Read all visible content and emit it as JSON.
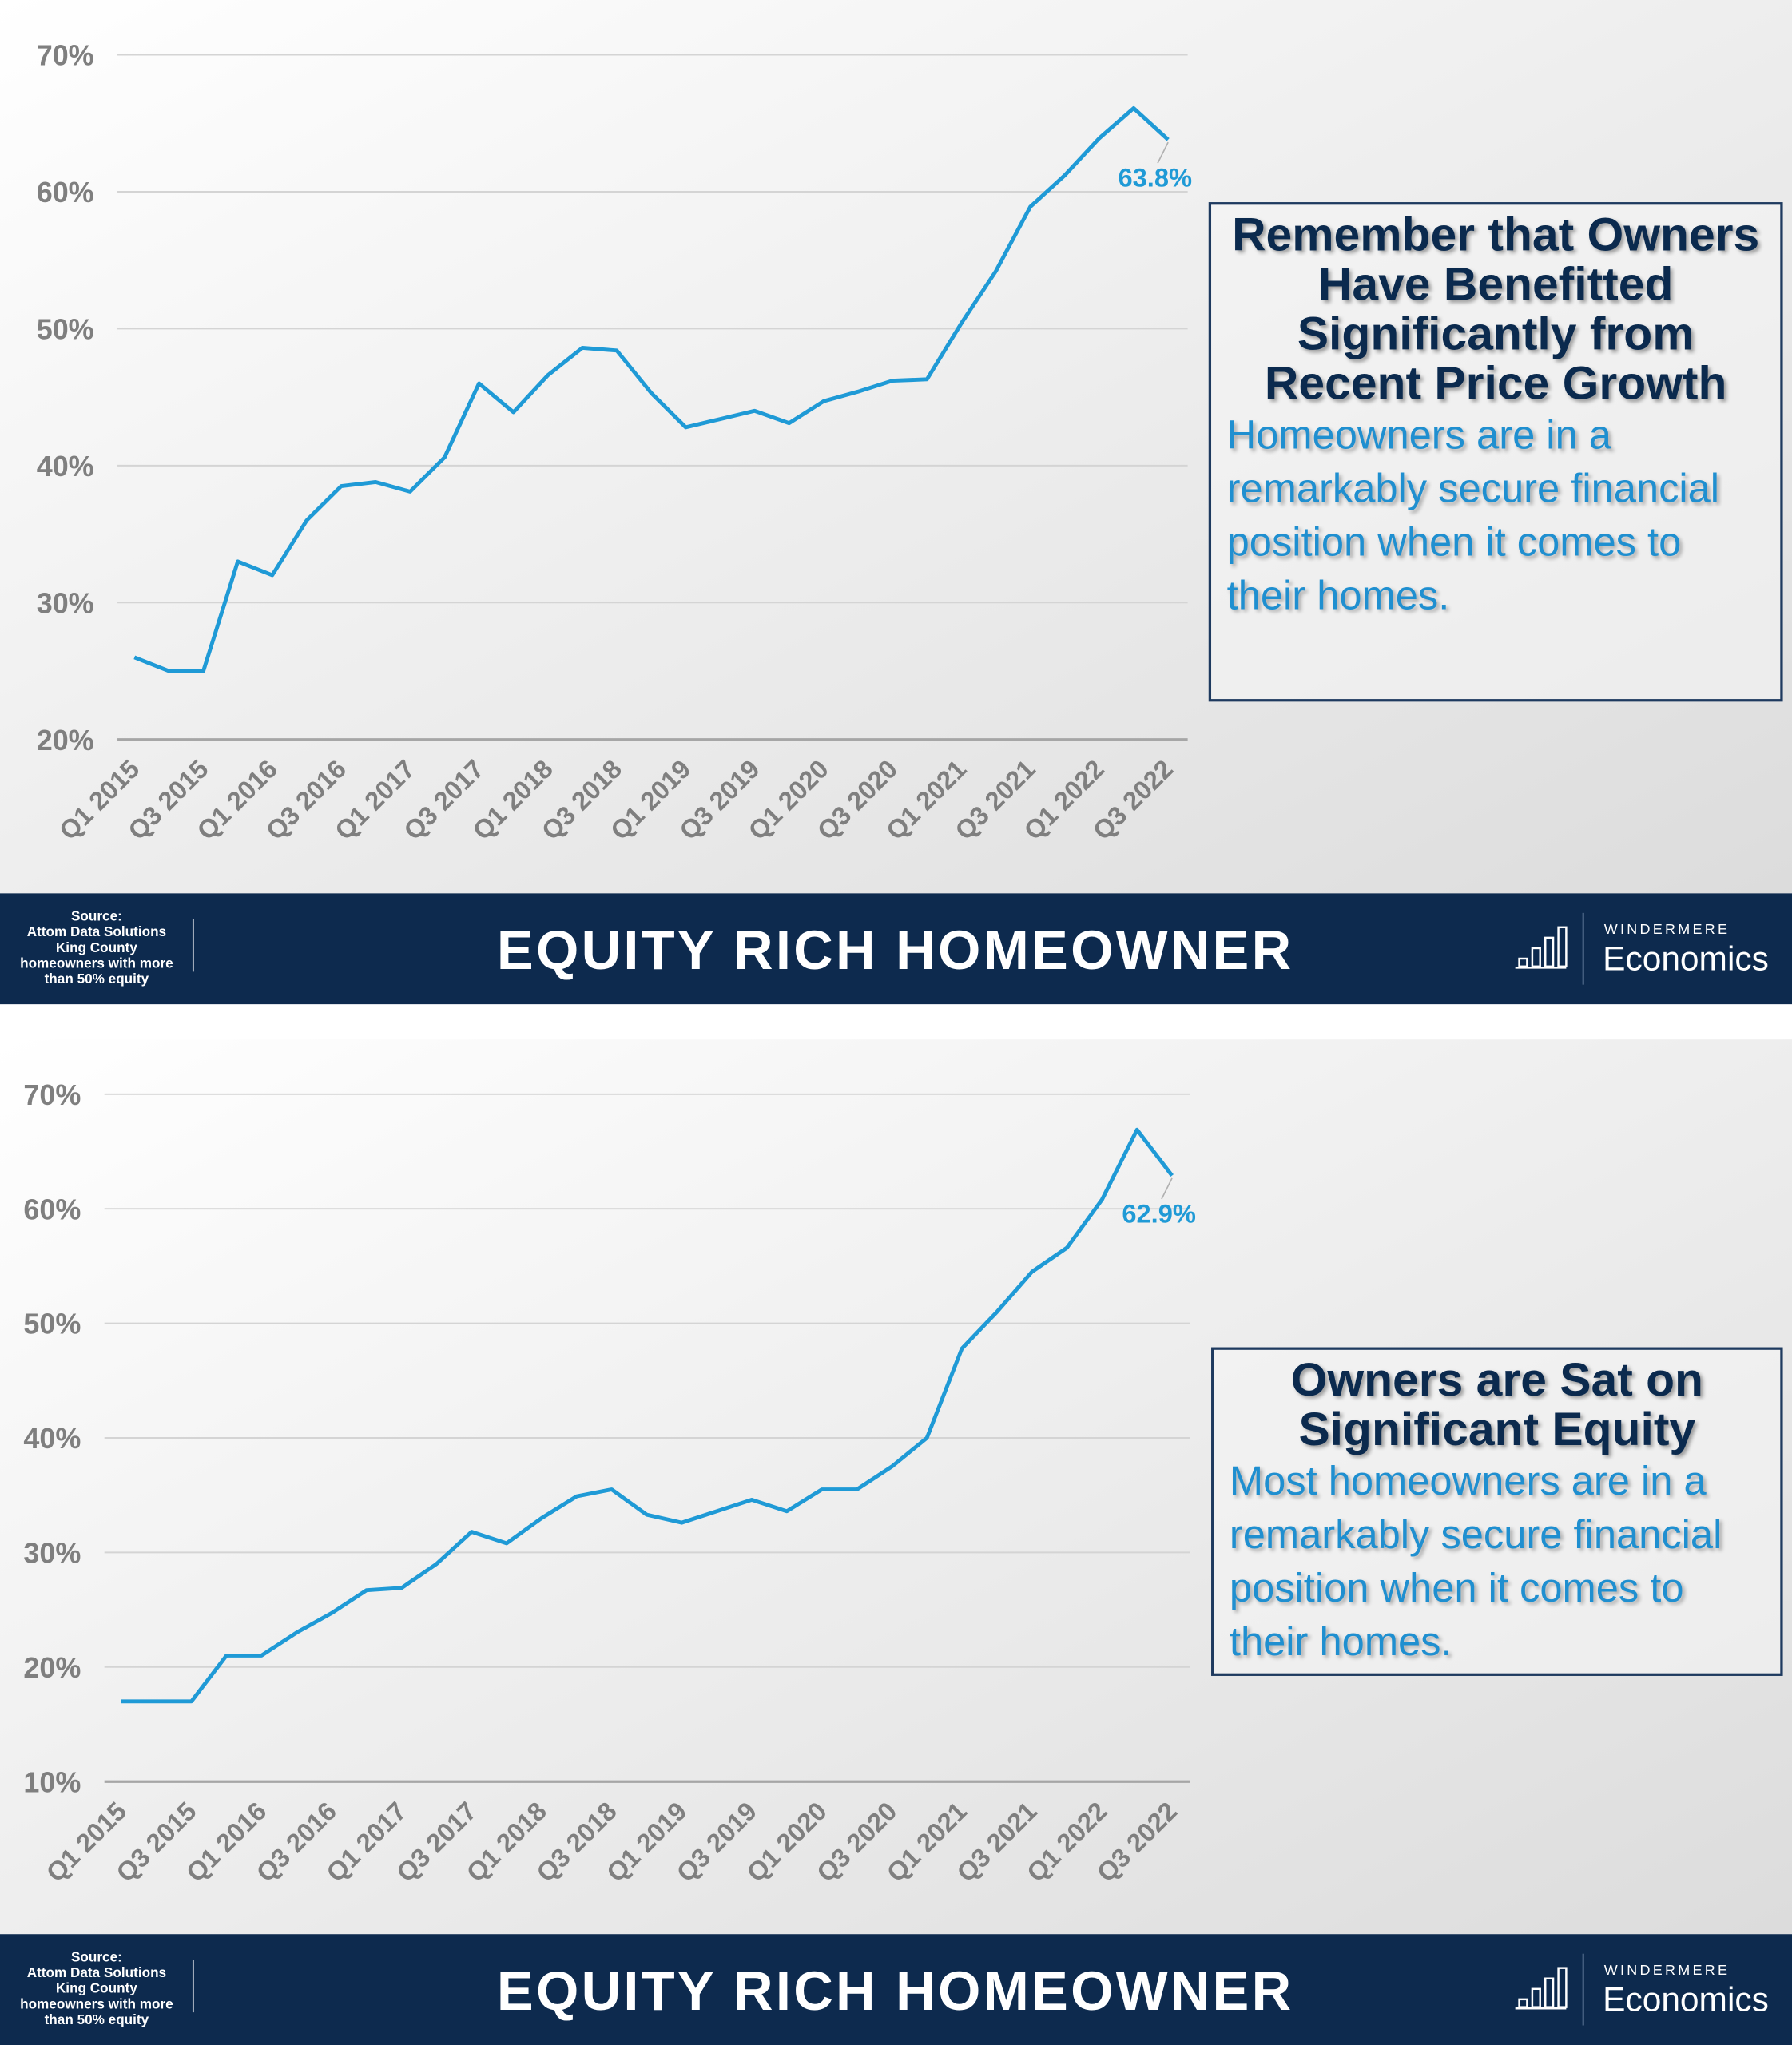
{
  "chart_data": [
    {
      "type": "line",
      "callout_title": "Remember that Owners Have Benefitted Significantly from Recent Price Growth",
      "callout_text": "Homeowners are in a remarkably secure financial position when it comes to their homes.",
      "footer_title": "EQUITY RICH HOMEOWNER",
      "source": [
        "Source:",
        "Attom Data Solutions",
        "King County",
        "homeowners with more",
        "than 50% equity"
      ],
      "brand": "WINDERMERE",
      "brand_sub": "Economics",
      "categories": [
        "Q1 2015",
        null,
        "Q3 2015",
        null,
        "Q1 2016",
        null,
        "Q3 2016",
        null,
        "Q1 2017",
        null,
        "Q3 2017",
        null,
        "Q1 2018",
        null,
        "Q3 2018",
        null,
        "Q1 2019",
        null,
        "Q3 2019",
        null,
        "Q1 2020",
        null,
        "Q3 2020",
        null,
        "Q1 2021",
        null,
        "Q3 2021",
        null,
        "Q1 2022",
        null,
        "Q3 2022"
      ],
      "values": [
        26,
        25,
        25,
        33,
        32,
        36,
        38.5,
        38.8,
        38.1,
        40.6,
        46,
        43.9,
        46.6,
        48.6,
        48.4,
        45.3,
        42.8,
        43.4,
        44,
        43.1,
        44.7,
        45.4,
        46.2,
        46.3,
        50.4,
        54.2,
        58.9,
        61.2,
        63.9,
        66.1,
        63.8
      ],
      "value_labels": [
        null,
        null,
        null,
        null,
        null,
        null,
        null,
        null,
        null,
        null,
        null,
        null,
        null,
        null,
        null,
        null,
        null,
        null,
        null,
        null,
        null,
        null,
        null,
        null,
        null,
        null,
        null,
        null,
        null,
        null,
        "63.8%"
      ],
      "color": "#1f9ad6",
      "ylim": [
        20,
        70
      ],
      "yticks": [
        {
          "value": 20,
          "label": "20%"
        },
        {
          "value": 30,
          "label": "30%"
        },
        {
          "value": 40,
          "label": "40%"
        },
        {
          "value": 50,
          "label": "50%"
        },
        {
          "value": 60,
          "label": "60%"
        },
        {
          "value": 70,
          "label": "70%"
        }
      ],
      "grid": true
    },
    {
      "type": "line",
      "callout_title": "Owners are Sat on Significant Equity",
      "callout_text": "Most homeowners are in a remarkably secure financial position when it comes to their homes.",
      "footer_title": "EQUITY RICH HOMEOWNER",
      "source": [
        "Source:",
        "Attom Data Solutions",
        "King County",
        "homeowners with more",
        "than 50% equity"
      ],
      "brand": "WINDERMERE",
      "brand_sub": "Economics",
      "categories": [
        "Q1 2015",
        null,
        "Q3 2015",
        null,
        "Q1 2016",
        null,
        "Q3 2016",
        null,
        "Q1 2017",
        null,
        "Q3 2017",
        null,
        "Q1 2018",
        null,
        "Q3 2018",
        null,
        "Q1 2019",
        null,
        "Q3 2019",
        null,
        "Q1 2020",
        null,
        "Q3 2020",
        null,
        "Q1 2021",
        null,
        "Q3 2021",
        null,
        "Q1 2022",
        null,
        "Q3 2022"
      ],
      "values": [
        17,
        17,
        17,
        21,
        21,
        23,
        24.7,
        26.7,
        26.9,
        29,
        31.8,
        30.8,
        33,
        34.9,
        35.5,
        33.3,
        32.6,
        33.6,
        34.6,
        33.6,
        35.5,
        35.5,
        37.5,
        40,
        47.8,
        51,
        54.5,
        56.6,
        60.8,
        66.9,
        62.9
      ],
      "value_labels": [
        null,
        null,
        null,
        null,
        null,
        null,
        null,
        null,
        null,
        null,
        null,
        null,
        null,
        null,
        null,
        null,
        null,
        null,
        null,
        null,
        null,
        null,
        null,
        null,
        null,
        null,
        null,
        null,
        null,
        null,
        "62.9%"
      ],
      "color": "#1f9ad6",
      "ylim": [
        10,
        70
      ],
      "yticks": [
        {
          "value": 10,
          "label": "10%"
        },
        {
          "value": 20,
          "label": "20%"
        },
        {
          "value": 30,
          "label": "30%"
        },
        {
          "value": 40,
          "label": "40%"
        },
        {
          "value": 50,
          "label": "50%"
        },
        {
          "value": 60,
          "label": "60%"
        },
        {
          "value": 70,
          "label": "70%"
        }
      ],
      "grid": true
    }
  ]
}
